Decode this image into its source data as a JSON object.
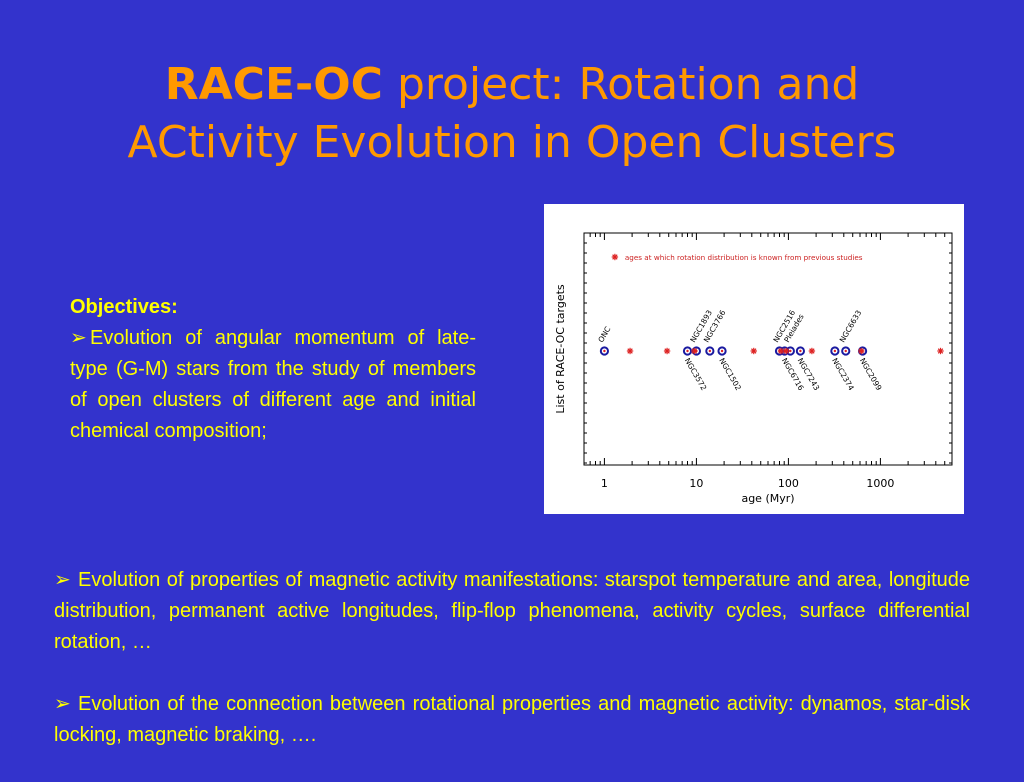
{
  "title": {
    "bold": "RACE-OC",
    "line1_rest": " project: Rotation and",
    "line2": "ACtivity Evolution in Open Clusters"
  },
  "objectives": {
    "heading": "Objectives:",
    "bullet_glyph": "➢",
    "text": "Evolution of angular momentum of late-type (G-M) stars from the study of members of open  clusters of different age and initial chemical composition;"
  },
  "bullets": [
    {
      "glyph": "➢",
      "text": "Evolution of properties of magnetic activity manifestations: starspot temperature and area, longitude distribution, permanent active longitudes, flip-flop phenomena, activity cycles, surface differential rotation, …"
    },
    {
      "glyph": "➢",
      "text": "Evolution of the connection between rotational properties and magnetic activity: dynamos, star-disk locking, magnetic braking, …."
    }
  ],
  "chart_data": {
    "type": "scatter",
    "xlabel": "age (Myr)",
    "ylabel": "List of RACE-OC targets",
    "xscale": "log",
    "xlim": [
      0.6,
      6000
    ],
    "xticks": [
      1,
      10,
      100,
      1000
    ],
    "xtick_labels": [
      "1",
      "10",
      "100",
      "1000"
    ],
    "grid": false,
    "colors": {
      "target": "#1a1aa0",
      "previous": "#dd2222",
      "annotation": "#cc2222"
    },
    "legend": {
      "marker": "*",
      "label": "ages at which rotation distribution is known from previous studies",
      "placement": "top-left"
    },
    "series": [
      {
        "marker": "circle",
        "points": [
          {
            "label": "ONC",
            "age": 1,
            "label_side": "above"
          },
          {
            "label": "NGC3572",
            "age": 8,
            "label_side": "below"
          },
          {
            "label": "NGC1893",
            "age": 10,
            "label_side": "above"
          },
          {
            "label": "NGC3766",
            "age": 14,
            "label_side": "above"
          },
          {
            "label": "NGC1502",
            "age": 19,
            "label_side": "below"
          },
          {
            "label": "NGC2516",
            "age": 80,
            "label_side": "above"
          },
          {
            "label": "NGC6716",
            "age": 91,
            "label_side": "below"
          },
          {
            "label": "Pleiades",
            "age": 105,
            "label_side": "above"
          },
          {
            "label": "NGC7243",
            "age": 135,
            "label_side": "below"
          },
          {
            "label": "NGC2374",
            "age": 320,
            "label_side": "below"
          },
          {
            "label": "NGC6633",
            "age": 420,
            "label_side": "above"
          },
          {
            "label": "NGC2099",
            "age": 640,
            "label_side": "below"
          }
        ]
      },
      {
        "marker": "*",
        "ages": [
          1.9,
          4.8,
          9.5,
          42,
          83,
          95,
          180,
          620,
          4500
        ]
      }
    ]
  }
}
